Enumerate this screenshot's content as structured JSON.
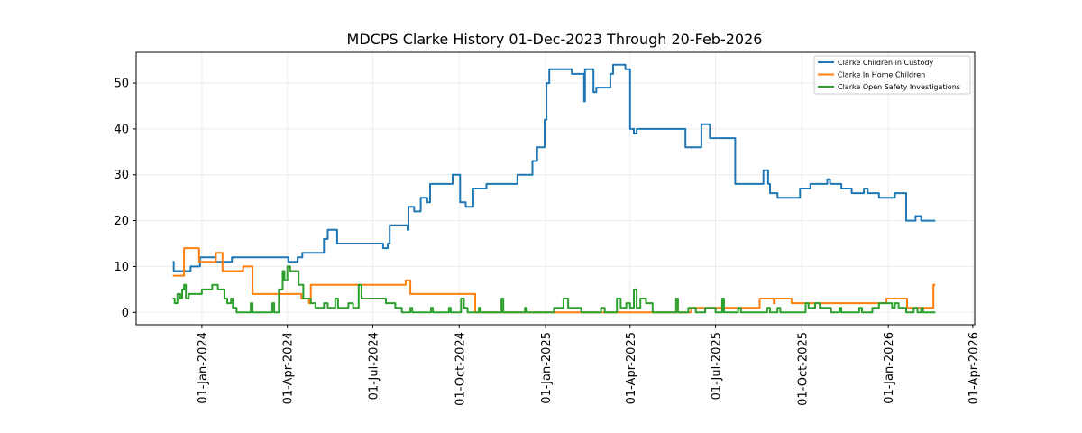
{
  "chart_data": {
    "type": "line",
    "title": "MDCPS Clarke History 01-Dec-2023 Through 20-Feb-2026",
    "xlabel": "",
    "ylabel": "",
    "xlim": [
      "2023-10-23",
      "2026-04-03"
    ],
    "ylim": [
      -2.7,
      56.7
    ],
    "grid": true,
    "legend_position": "top-right",
    "xticks": [
      {
        "date": "2024-01-01",
        "label": "01-Jan-2024"
      },
      {
        "date": "2024-04-01",
        "label": "01-Apr-2024"
      },
      {
        "date": "2024-07-01",
        "label": "01-Jul-2024"
      },
      {
        "date": "2024-10-01",
        "label": "01-Oct-2024"
      },
      {
        "date": "2025-01-01",
        "label": "01-Jan-2025"
      },
      {
        "date": "2025-04-01",
        "label": "01-Apr-2025"
      },
      {
        "date": "2025-07-01",
        "label": "01-Jul-2025"
      },
      {
        "date": "2025-10-01",
        "label": "01-Oct-2025"
      },
      {
        "date": "2026-01-01",
        "label": "01-Jan-2026"
      },
      {
        "date": "2026-04-01",
        "label": "01-Apr-2026"
      }
    ],
    "yticks": [
      {
        "value": 0,
        "label": "0"
      },
      {
        "value": 10,
        "label": "10"
      },
      {
        "value": 20,
        "label": "20"
      },
      {
        "value": 30,
        "label": "30"
      },
      {
        "value": 40,
        "label": "40"
      },
      {
        "value": 50,
        "label": "50"
      }
    ],
    "series": [
      {
        "name": "Clarke Children in Custody",
        "color": "#1f77b4",
        "points": [
          [
            "2023-12-01",
            11
          ],
          [
            "2023-12-02",
            9
          ],
          [
            "2023-12-20",
            10
          ],
          [
            "2023-12-30",
            12
          ],
          [
            "2024-01-16",
            11
          ],
          [
            "2024-02-02",
            12
          ],
          [
            "2024-04-02",
            11
          ],
          [
            "2024-04-12",
            12
          ],
          [
            "2024-04-17",
            13
          ],
          [
            "2024-05-10",
            16
          ],
          [
            "2024-05-14",
            18
          ],
          [
            "2024-05-24",
            15
          ],
          [
            "2024-07-12",
            14
          ],
          [
            "2024-07-17",
            15
          ],
          [
            "2024-07-19",
            19
          ],
          [
            "2024-08-07",
            18
          ],
          [
            "2024-08-08",
            23
          ],
          [
            "2024-08-14",
            22
          ],
          [
            "2024-08-21",
            25
          ],
          [
            "2024-08-28",
            24
          ],
          [
            "2024-08-31",
            28
          ],
          [
            "2024-09-24",
            30
          ],
          [
            "2024-10-02",
            24
          ],
          [
            "2024-10-08",
            23
          ],
          [
            "2024-10-16",
            27
          ],
          [
            "2024-10-30",
            28
          ],
          [
            "2024-12-02",
            30
          ],
          [
            "2024-12-18",
            33
          ],
          [
            "2024-12-23",
            36
          ],
          [
            "2024-12-31",
            42
          ],
          [
            "2025-01-02",
            50
          ],
          [
            "2025-01-05",
            53
          ],
          [
            "2025-01-29",
            52
          ],
          [
            "2025-02-11",
            46
          ],
          [
            "2025-02-12",
            53
          ],
          [
            "2025-02-21",
            48
          ],
          [
            "2025-02-24",
            49
          ],
          [
            "2025-03-11",
            52
          ],
          [
            "2025-03-14",
            54
          ],
          [
            "2025-03-27",
            53
          ],
          [
            "2025-04-01",
            40
          ],
          [
            "2025-04-05",
            39
          ],
          [
            "2025-04-08",
            40
          ],
          [
            "2025-05-30",
            36
          ],
          [
            "2025-06-16",
            41
          ],
          [
            "2025-06-25",
            38
          ],
          [
            "2025-07-22",
            28
          ],
          [
            "2025-08-21",
            31
          ],
          [
            "2025-08-26",
            28
          ],
          [
            "2025-08-28",
            26
          ],
          [
            "2025-09-05",
            25
          ],
          [
            "2025-09-29",
            27
          ],
          [
            "2025-10-10",
            28
          ],
          [
            "2025-10-28",
            29
          ],
          [
            "2025-10-31",
            28
          ],
          [
            "2025-11-12",
            27
          ],
          [
            "2025-11-23",
            26
          ],
          [
            "2025-12-06",
            27
          ],
          [
            "2025-12-10",
            26
          ],
          [
            "2025-12-22",
            25
          ],
          [
            "2026-01-08",
            26
          ],
          [
            "2026-01-20",
            20
          ],
          [
            "2026-01-30",
            21
          ],
          [
            "2026-02-05",
            20
          ],
          [
            "2026-02-20",
            20
          ]
        ]
      },
      {
        "name": "Clarke In Home Children",
        "color": "#ff7f0e",
        "points": [
          [
            "2023-12-01",
            8
          ],
          [
            "2023-12-13",
            14
          ],
          [
            "2023-12-29",
            11
          ],
          [
            "2024-01-16",
            13
          ],
          [
            "2024-01-23",
            9
          ],
          [
            "2024-02-14",
            10
          ],
          [
            "2024-02-24",
            4
          ],
          [
            "2024-04-16",
            3
          ],
          [
            "2024-04-24",
            2
          ],
          [
            "2024-04-26",
            6
          ],
          [
            "2024-08-05",
            7
          ],
          [
            "2024-08-10",
            4
          ],
          [
            "2024-10-18",
            0
          ],
          [
            "2025-06-05",
            1
          ],
          [
            "2025-08-17",
            3
          ],
          [
            "2025-09-01",
            2
          ],
          [
            "2025-09-02",
            3
          ],
          [
            "2025-09-20",
            2
          ],
          [
            "2025-12-30",
            3
          ],
          [
            "2026-01-21",
            1
          ],
          [
            "2026-02-18",
            6
          ],
          [
            "2026-02-20",
            6
          ]
        ]
      },
      {
        "name": "Clarke Open Safety Investigations",
        "color": "#2ca02c",
        "points": [
          [
            "2023-12-01",
            3
          ],
          [
            "2023-12-03",
            2
          ],
          [
            "2023-12-06",
            4
          ],
          [
            "2023-12-09",
            3
          ],
          [
            "2023-12-11",
            5
          ],
          [
            "2023-12-13",
            6
          ],
          [
            "2023-12-15",
            3
          ],
          [
            "2023-12-18",
            4
          ],
          [
            "2024-01-01",
            5
          ],
          [
            "2024-01-08",
            5
          ],
          [
            "2024-01-12",
            6
          ],
          [
            "2024-01-18",
            5
          ],
          [
            "2024-01-25",
            3
          ],
          [
            "2024-01-28",
            2
          ],
          [
            "2024-02-01",
            3
          ],
          [
            "2024-02-03",
            1
          ],
          [
            "2024-02-07",
            0
          ],
          [
            "2024-02-22",
            2
          ],
          [
            "2024-02-24",
            0
          ],
          [
            "2024-03-16",
            2
          ],
          [
            "2024-03-18",
            0
          ],
          [
            "2024-03-23",
            5
          ],
          [
            "2024-03-27",
            9
          ],
          [
            "2024-03-29",
            7
          ],
          [
            "2024-04-01",
            10
          ],
          [
            "2024-04-04",
            9
          ],
          [
            "2024-04-13",
            6
          ],
          [
            "2024-04-18",
            3
          ],
          [
            "2024-04-26",
            2
          ],
          [
            "2024-05-01",
            1
          ],
          [
            "2024-05-10",
            2
          ],
          [
            "2024-05-14",
            1
          ],
          [
            "2024-05-22",
            3
          ],
          [
            "2024-05-25",
            1
          ],
          [
            "2024-06-05",
            2
          ],
          [
            "2024-06-10",
            1
          ],
          [
            "2024-06-16",
            6
          ],
          [
            "2024-06-19",
            3
          ],
          [
            "2024-07-15",
            2
          ],
          [
            "2024-07-25",
            1
          ],
          [
            "2024-08-01",
            0
          ],
          [
            "2024-08-10",
            1
          ],
          [
            "2024-08-12",
            0
          ],
          [
            "2024-09-01",
            1
          ],
          [
            "2024-09-03",
            0
          ],
          [
            "2024-09-20",
            1
          ],
          [
            "2024-09-22",
            0
          ],
          [
            "2024-10-03",
            3
          ],
          [
            "2024-10-06",
            1
          ],
          [
            "2024-10-10",
            0
          ],
          [
            "2024-10-22",
            1
          ],
          [
            "2024-10-24",
            0
          ],
          [
            "2024-11-15",
            3
          ],
          [
            "2024-11-17",
            0
          ],
          [
            "2024-12-10",
            1
          ],
          [
            "2024-12-12",
            0
          ],
          [
            "2025-01-10",
            1
          ],
          [
            "2025-01-20",
            3
          ],
          [
            "2025-01-25",
            1
          ],
          [
            "2025-02-05",
            1
          ],
          [
            "2025-02-08",
            0
          ],
          [
            "2025-03-01",
            1
          ],
          [
            "2025-03-05",
            0
          ],
          [
            "2025-03-18",
            3
          ],
          [
            "2025-03-22",
            1
          ],
          [
            "2025-03-28",
            2
          ],
          [
            "2025-04-01",
            1
          ],
          [
            "2025-04-05",
            5
          ],
          [
            "2025-04-08",
            1
          ],
          [
            "2025-04-12",
            3
          ],
          [
            "2025-04-18",
            2
          ],
          [
            "2025-04-25",
            0
          ],
          [
            "2025-05-20",
            3
          ],
          [
            "2025-05-22",
            0
          ],
          [
            "2025-06-02",
            1
          ],
          [
            "2025-06-10",
            0
          ],
          [
            "2025-06-20",
            1
          ],
          [
            "2025-07-01",
            0
          ],
          [
            "2025-07-08",
            3
          ],
          [
            "2025-07-10",
            0
          ],
          [
            "2025-07-25",
            1
          ],
          [
            "2025-07-28",
            0
          ],
          [
            "2025-08-25",
            1
          ],
          [
            "2025-08-28",
            0
          ],
          [
            "2025-09-05",
            1
          ],
          [
            "2025-09-08",
            0
          ],
          [
            "2025-10-05",
            2
          ],
          [
            "2025-10-08",
            1
          ],
          [
            "2025-10-15",
            2
          ],
          [
            "2025-10-20",
            1
          ],
          [
            "2025-11-01",
            0
          ],
          [
            "2025-11-10",
            1
          ],
          [
            "2025-11-12",
            0
          ],
          [
            "2025-12-01",
            1
          ],
          [
            "2025-12-04",
            0
          ],
          [
            "2025-12-15",
            1
          ],
          [
            "2025-12-22",
            2
          ],
          [
            "2026-01-05",
            1
          ],
          [
            "2026-01-08",
            2
          ],
          [
            "2026-01-12",
            1
          ],
          [
            "2026-01-20",
            0
          ],
          [
            "2026-01-28",
            1
          ],
          [
            "2026-02-01",
            0
          ],
          [
            "2026-02-05",
            1
          ],
          [
            "2026-02-07",
            0
          ],
          [
            "2026-02-20",
            0
          ]
        ]
      }
    ]
  }
}
